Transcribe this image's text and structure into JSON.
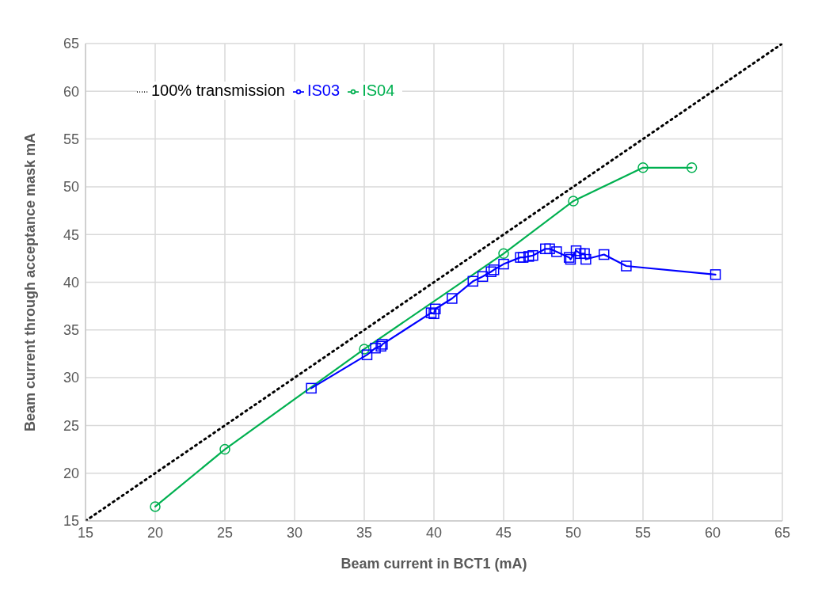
{
  "chart_data": {
    "type": "line",
    "xlabel": "Beam current in BCT1 (mA)",
    "ylabel": "Beam current through acceptance mask mA",
    "xlim": [
      15,
      65
    ],
    "xticks": [
      15,
      20,
      25,
      30,
      35,
      40,
      45,
      50,
      55,
      60,
      65
    ],
    "ylim": [
      15,
      65
    ],
    "yticks": [
      15,
      20,
      25,
      30,
      35,
      40,
      45,
      50,
      55,
      60,
      65
    ],
    "grid": true,
    "legend": "top left",
    "series": [
      {
        "name": "100% transmission",
        "color": "#000000",
        "marker": "none",
        "line_style": "dotted",
        "x": [
          15,
          65
        ],
        "values": [
          15,
          65
        ]
      },
      {
        "name": "IS04",
        "color": "#00b050",
        "marker": "circle",
        "line_style": "solid",
        "x": [
          20,
          25,
          35,
          45,
          50,
          55,
          58.5
        ],
        "values": [
          16.5,
          22.5,
          33,
          43,
          48.5,
          52,
          52
        ]
      },
      {
        "name": "IS03",
        "color": "#0000ff",
        "marker": "square",
        "line_style": "solid",
        "x": [
          31.2,
          35.2,
          35.8,
          36.2,
          36.3,
          39.8,
          40.0,
          40.1,
          41.3,
          42.8,
          43.5,
          44.1,
          44.3,
          45.0,
          46.2,
          46.4,
          46.8,
          47.1,
          48.0,
          48.3,
          48.8,
          49.7,
          49.8,
          50.2,
          50.5,
          50.8,
          50.9,
          52.2,
          53.8,
          60.2
        ],
        "values": [
          28.9,
          32.4,
          33.1,
          33.3,
          33.5,
          36.8,
          36.7,
          37.2,
          38.3,
          40.1,
          40.6,
          41.1,
          41.3,
          41.9,
          42.6,
          42.6,
          42.7,
          42.8,
          43.5,
          43.5,
          43.2,
          42.6,
          42.4,
          43.3,
          43.0,
          43.0,
          42.4,
          42.9,
          41.7,
          40.8
        ]
      }
    ]
  }
}
